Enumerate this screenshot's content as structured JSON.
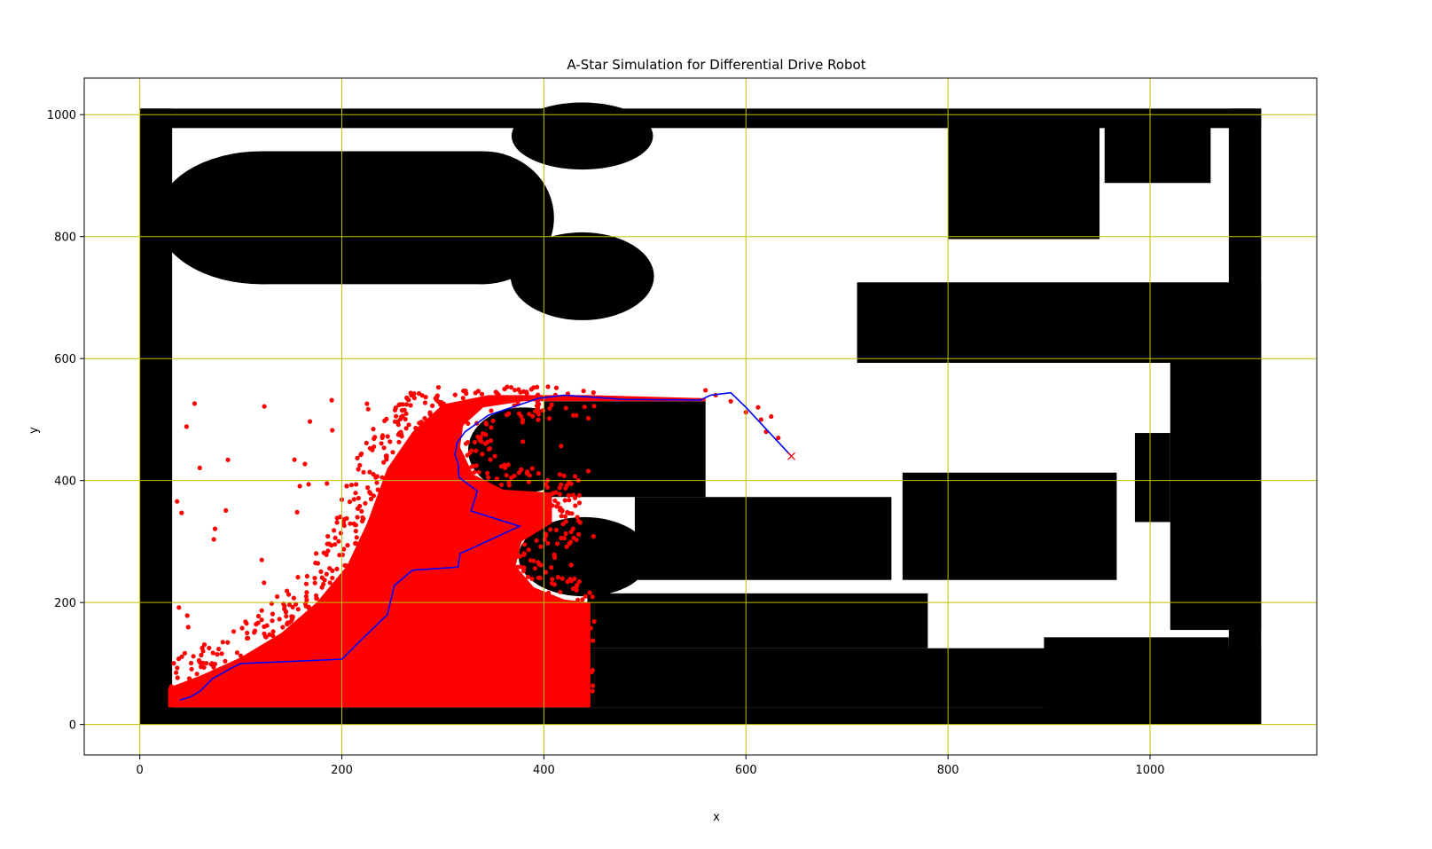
{
  "chart_data": {
    "type": "scatter",
    "title": "A-Star Simulation for Differential Drive Robot",
    "xlabel": "x",
    "ylabel": "y",
    "xlim": [
      -55,
      1165
    ],
    "ylim": [
      -50,
      1060
    ],
    "xticks": [
      0,
      200,
      400,
      600,
      800,
      1000
    ],
    "yticks": [
      0,
      200,
      400,
      600,
      800,
      1000
    ],
    "grid": true,
    "colors": {
      "obstacle": "#000000",
      "explored": "#ff0000",
      "path": "#0000ff",
      "goal": "#ff0000",
      "grid": "#bfbf00"
    },
    "obstacles": {
      "rects": [
        [
          0,
          978,
          1110,
          1010
        ],
        [
          0,
          0,
          32,
          1010
        ],
        [
          1078,
          0,
          1110,
          1010
        ],
        [
          0,
          0,
          1110,
          28
        ],
        [
          120,
          722,
          340,
          940
        ],
        [
          800,
          796,
          950,
          980
        ],
        [
          955,
          888,
          1060,
          980
        ],
        [
          710,
          593,
          1110,
          725
        ],
        [
          1020,
          155,
          1110,
          600
        ],
        [
          985,
          332,
          1020,
          478
        ],
        [
          755,
          237,
          967,
          413
        ],
        [
          400,
          373,
          560,
          530
        ],
        [
          490,
          237,
          744,
          373
        ],
        [
          443,
          125,
          780,
          215
        ],
        [
          443,
          28,
          1110,
          125
        ],
        [
          895,
          28,
          1078,
          143
        ],
        [
          395,
          165,
          443,
          200
        ]
      ],
      "ellipses": [
        [
          120,
          831,
          103,
          109
        ],
        [
          340,
          831,
          70,
          109
        ],
        [
          438,
          965,
          70,
          55
        ],
        [
          438,
          735,
          71,
          72
        ],
        [
          380,
          450,
          55,
          70
        ],
        [
          440,
          275,
          65,
          65
        ]
      ]
    },
    "explored_region": [
      [
        28,
        28
      ],
      [
        28,
        60
      ],
      [
        60,
        80
      ],
      [
        100,
        110
      ],
      [
        140,
        150
      ],
      [
        175,
        200
      ],
      [
        205,
        260
      ],
      [
        225,
        330
      ],
      [
        245,
        420
      ],
      [
        270,
        480
      ],
      [
        300,
        525
      ],
      [
        345,
        540
      ],
      [
        445,
        540
      ],
      [
        560,
        535
      ],
      [
        560,
        530
      ],
      [
        445,
        530
      ],
      [
        380,
        530
      ],
      [
        340,
        520
      ],
      [
        320,
        490
      ],
      [
        317,
        455
      ],
      [
        330,
        410
      ],
      [
        360,
        385
      ],
      [
        408,
        380
      ],
      [
        408,
        330
      ],
      [
        378,
        300
      ],
      [
        372,
        260
      ],
      [
        390,
        225
      ],
      [
        420,
        205
      ],
      [
        446,
        200
      ],
      [
        446,
        28
      ]
    ],
    "path": [
      [
        40,
        40
      ],
      [
        50,
        45
      ],
      [
        60,
        55
      ],
      [
        72,
        75
      ],
      [
        90,
        92
      ],
      [
        100,
        100
      ],
      [
        200,
        107
      ],
      [
        220,
        140
      ],
      [
        245,
        180
      ],
      [
        252,
        228
      ],
      [
        270,
        253
      ],
      [
        315,
        258
      ],
      [
        317,
        280
      ],
      [
        376,
        325
      ],
      [
        328,
        350
      ],
      [
        334,
        383
      ],
      [
        316,
        405
      ],
      [
        315,
        428
      ],
      [
        312,
        442
      ],
      [
        314,
        462
      ],
      [
        322,
        480
      ],
      [
        345,
        507
      ],
      [
        395,
        535
      ],
      [
        420,
        540
      ],
      [
        480,
        533
      ],
      [
        555,
        532
      ],
      [
        565,
        540
      ],
      [
        585,
        544
      ],
      [
        600,
        520
      ],
      [
        645,
        440
      ]
    ],
    "goal": [
      645,
      440
    ]
  }
}
